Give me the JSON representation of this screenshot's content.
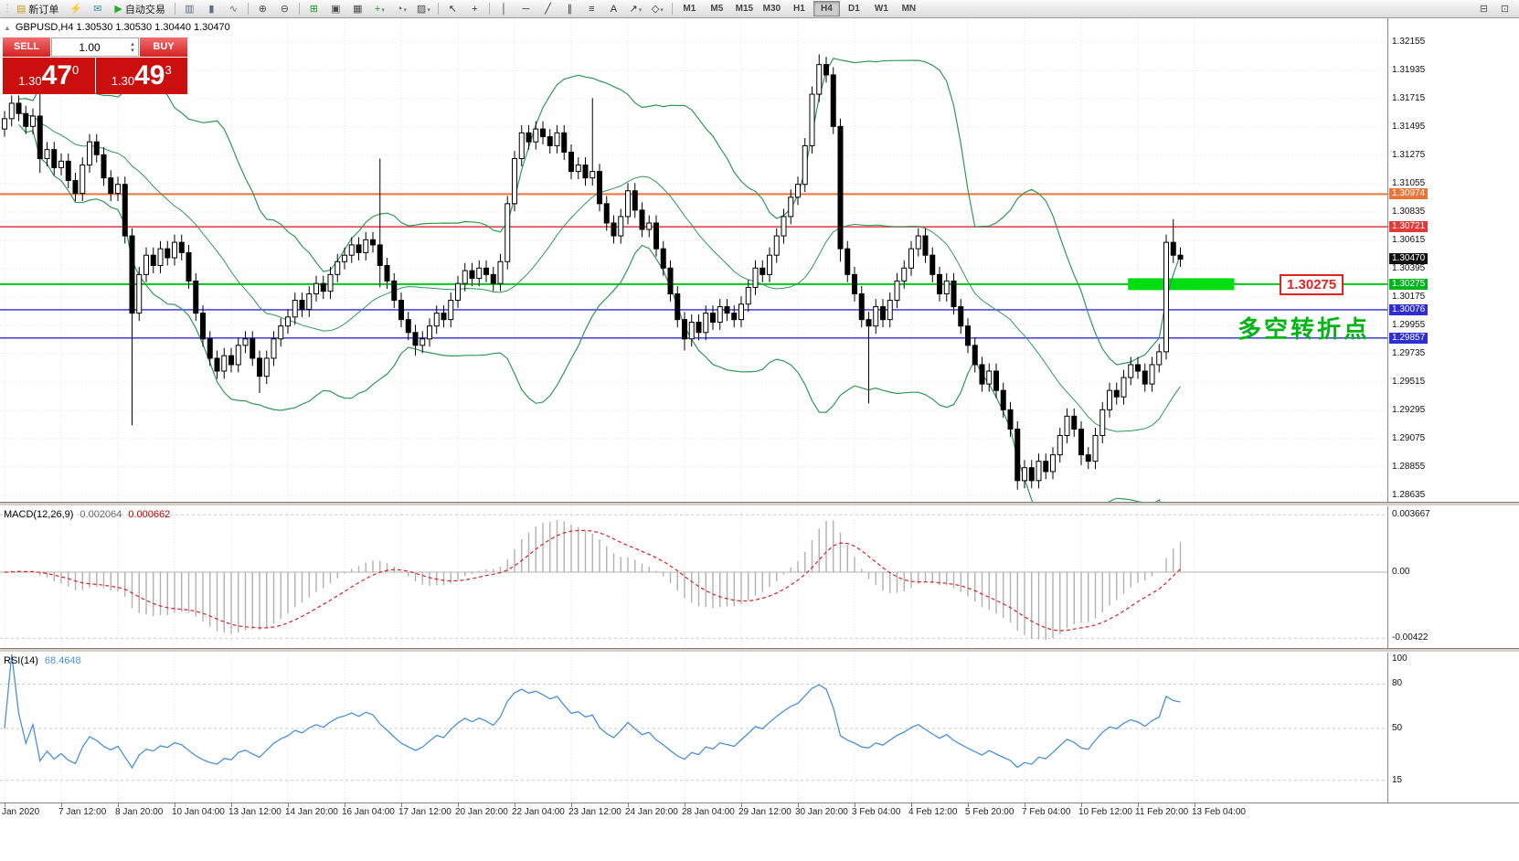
{
  "toolbar": {
    "items": [
      {
        "t": "grip",
        "name": "toolbar-grip"
      },
      {
        "t": "button",
        "name": "new-order-button",
        "glyph": "▤",
        "gc": "#caa21a",
        "label": "新订单"
      },
      {
        "t": "icon",
        "name": "alerts-icon-button",
        "glyph": "⚡",
        "gc": "#d39b18"
      },
      {
        "t": "icon",
        "name": "mailbox-icon-button",
        "glyph": "✉",
        "gc": "#2f94ae"
      },
      {
        "t": "button",
        "name": "auto-trading-button",
        "glyph": "▶",
        "gc": "#1db11d",
        "label": "自动交易"
      },
      {
        "t": "sep"
      },
      {
        "t": "icon",
        "name": "bar-chart-icon-button",
        "glyph": "▥",
        "gc": "#5a6f85"
      },
      {
        "t": "icon",
        "name": "candlestick-chart-icon-button",
        "glyph": "▮",
        "gc": "#5a6f85"
      },
      {
        "t": "icon",
        "name": "line-chart-icon-button",
        "glyph": "∿",
        "gc": "#5a6f85"
      },
      {
        "t": "sep"
      },
      {
        "t": "icon",
        "name": "zoom-in-icon-button",
        "glyph": "⊕",
        "gc": "#4a4a4a"
      },
      {
        "t": "icon",
        "name": "zoom-out-icon-button",
        "glyph": "⊖",
        "gc": "#4a4a4a"
      },
      {
        "t": "sep"
      },
      {
        "t": "icon",
        "name": "tile-windows-icon-button",
        "glyph": "⊞",
        "gc": "#1a9c1a"
      },
      {
        "t": "icon",
        "name": "cascade-windows-icon-button",
        "glyph": "▣",
        "gc": "#4a4a4a"
      },
      {
        "t": "icon",
        "name": "arrange-windows-icon-button",
        "glyph": "▦",
        "gc": "#4a4a4a"
      },
      {
        "t": "icon",
        "name": "indicators-icon-button",
        "glyph": "+",
        "gc": "#1a9c1a",
        "caret": true
      },
      {
        "t": "icon",
        "name": "periods-icon-button",
        "glyph": "◔",
        "gc": "#4a4a4a",
        "caret": true
      },
      {
        "t": "icon",
        "name": "templates-icon-button",
        "glyph": "▨",
        "gc": "#4a4a4a",
        "caret": true
      },
      {
        "t": "sep"
      },
      {
        "t": "icon",
        "name": "cursor-icon-button",
        "glyph": "↖",
        "gc": "#333333"
      },
      {
        "t": "icon",
        "name": "crosshair-icon-button",
        "glyph": "+",
        "gc": "#333333"
      },
      {
        "t": "sep"
      },
      {
        "t": "icon",
        "name": "vertical-line-icon-button",
        "glyph": "│",
        "gc": "#333333"
      },
      {
        "t": "icon",
        "name": "horizontal-line-icon-button",
        "glyph": "─",
        "gc": "#333333"
      },
      {
        "t": "icon",
        "name": "trendline-icon-button",
        "glyph": "╱",
        "gc": "#333333"
      },
      {
        "t": "icon",
        "name": "channel-icon-button",
        "glyph": "∥",
        "gc": "#333333"
      },
      {
        "t": "icon",
        "name": "fibonacci-icon-button",
        "glyph": "≡",
        "gc": "#333333"
      },
      {
        "t": "icon",
        "name": "text-icon-button",
        "glyph": "A",
        "gc": "#333333"
      },
      {
        "t": "icon",
        "name": "arrows-icon-button",
        "glyph": "↗",
        "gc": "#333333",
        "caret": true
      },
      {
        "t": "icon",
        "name": "shapes-icon-button",
        "glyph": "◇",
        "gc": "#333333",
        "caret": true
      },
      {
        "t": "sep"
      }
    ],
    "timeframes": [
      "M1",
      "M5",
      "M15",
      "M30",
      "H1",
      "H4",
      "D1",
      "W1",
      "MN"
    ],
    "active_timeframe": "H4",
    "right_icons": [
      {
        "name": "data-window-icon-button",
        "glyph": "⊟"
      },
      {
        "name": "full-screen-icon-button",
        "glyph": "⊡"
      }
    ]
  },
  "chart": {
    "symbol_header": {
      "collapse_icon": "▲",
      "text": "GBPUSD,H4 1.30530 1.30530 1.30440 1.30470"
    },
    "trade_panel": {
      "sell_label": "SELL",
      "buy_label": "BUY",
      "volume": "1.00",
      "spin_up": "▴",
      "spin_down": "▾",
      "sell_price": {
        "prefix": "1.30",
        "big": "47",
        "sup": "0"
      },
      "buy_price": {
        "prefix": "1.30",
        "big": "49",
        "sup": "3"
      }
    },
    "price_axis_ticks": [
      "1.32155",
      "1.31935",
      "1.31715",
      "1.31495",
      "1.31275",
      "1.31055",
      "1.30835",
      "1.30615",
      "1.30395",
      "1.30175",
      "1.29955",
      "1.29735",
      "1.29515",
      "1.29295",
      "1.29075",
      "1.28855",
      "1.28635"
    ],
    "axis_badges": [
      {
        "text": "1.30974",
        "bg": "#e8763a"
      },
      {
        "text": "1.30721",
        "bg": "#e03a3a"
      },
      {
        "text": "1.30470",
        "bg": "#111111"
      },
      {
        "text": "1.30275",
        "bg": "#00b41e"
      },
      {
        "text": "1.30076",
        "bg": "#2d2dd0"
      },
      {
        "text": "1.29857",
        "bg": "#2d2dd0"
      }
    ],
    "hlines": [
      {
        "price": 1.30974,
        "color": "#e8763a",
        "w": 2
      },
      {
        "price": 1.30721,
        "color": "#e03a3a",
        "w": 1.5
      },
      {
        "price": 1.30275,
        "color": "#00c816",
        "w": 2
      },
      {
        "price": 1.30076,
        "color": "#2d2dd0",
        "w": 1.3
      },
      {
        "price": 1.29857,
        "color": "#2d2dd0",
        "w": 1.3
      }
    ],
    "highlight_bar": {
      "price": 1.30275,
      "start_index": 159,
      "end_index": 174,
      "color": "#00dd11",
      "thickness": 13
    },
    "price_label_box": "1.30275",
    "annotation": {
      "text": "多空转折点",
      "color": "#00b414"
    },
    "colors": {
      "bollinger": "#2e9953",
      "candle_up": "#ffffff",
      "candle_down": "#000000",
      "candle_border": "#000000",
      "grid": "#e6e6e6",
      "macd_hist": "#b0b0b0",
      "macd_signal": "#dd2020",
      "rsi_line": "#4a90d9",
      "level_dash": "#c8c8c8"
    }
  },
  "chart_data": {
    "type": "candlestick",
    "symbol": "GBPUSD",
    "timeframe": "H4",
    "first_open": 1.3148,
    "wick": 0.0006,
    "closes": [
      1.3156,
      1.3168,
      1.316,
      1.315,
      1.3158,
      1.3125,
      1.3132,
      1.3118,
      1.3123,
      1.3108,
      1.3098,
      1.312,
      1.3138,
      1.3128,
      1.311,
      1.3098,
      1.3105,
      1.3065,
      1.3005,
      1.3035,
      1.305,
      1.3042,
      1.3055,
      1.3048,
      1.306,
      1.3052,
      1.303,
      1.3005,
      1.2985,
      1.297,
      1.296,
      1.2972,
      1.2965,
      1.298,
      1.2985,
      1.297,
      1.2956,
      1.297,
      1.2985,
      1.2995,
      1.3002,
      1.3015,
      1.3008,
      1.302,
      1.3028,
      1.3022,
      1.3035,
      1.3045,
      1.305,
      1.3058,
      1.3052,
      1.3062,
      1.3058,
      1.3042,
      1.303,
      1.3015,
      1.3,
      1.299,
      1.298,
      1.2985,
      1.2995,
      1.3005,
      1.3,
      1.3015,
      1.3028,
      1.3038,
      1.3032,
      1.304,
      1.3035,
      1.3028,
      1.3045,
      1.309,
      1.3125,
      1.3145,
      1.3138,
      1.3148,
      1.3142,
      1.3135,
      1.3145,
      1.313,
      1.3115,
      1.312,
      1.311,
      1.3115,
      1.309,
      1.3075,
      1.3065,
      1.308,
      1.31,
      1.3085,
      1.307,
      1.3075,
      1.3055,
      1.304,
      1.302,
      1.3,
      1.2985,
      1.2998,
      1.299,
      1.3005,
      1.2998,
      1.301,
      1.3005,
      1.3,
      1.3012,
      1.3025,
      1.304,
      1.3035,
      1.305,
      1.3065,
      1.308,
      1.3095,
      1.3105,
      1.3135,
      1.3175,
      1.3198,
      1.319,
      1.315,
      1.3055,
      1.3035,
      1.302,
      1.3,
      1.2995,
      1.301,
      1.3,
      1.3015,
      1.303,
      1.304,
      1.3055,
      1.3065,
      1.305,
      1.3035,
      1.302,
      1.303,
      1.301,
      1.2995,
      1.298,
      1.2965,
      1.295,
      1.296,
      1.2945,
      1.293,
      1.2915,
      1.2875,
      1.2885,
      1.2875,
      1.289,
      1.2882,
      1.2895,
      1.291,
      1.2925,
      1.2915,
      1.2895,
      1.289,
      1.291,
      1.293,
      1.2945,
      1.294,
      1.2955,
      1.2965,
      1.296,
      1.295,
      1.2965,
      1.2975,
      1.306,
      1.305,
      1.3047
    ],
    "overrides": {
      "5": {
        "h": 1.3176,
        "l": 1.3114
      },
      "18": {
        "l": 1.2918
      },
      "36": {
        "l": 1.2943
      },
      "53": {
        "h": 1.3125,
        "l": 1.3025
      },
      "58": {
        "l": 1.2972
      },
      "83": {
        "h": 1.3172
      },
      "96": {
        "l": 1.2976
      },
      "115": {
        "h": 1.3206
      },
      "118": {
        "l": 1.3045
      },
      "122": {
        "l": 1.2935
      },
      "143": {
        "l": 1.2868
      },
      "152": {
        "l": 1.2887
      },
      "164": {
        "h": 1.3066
      },
      "165": {
        "h": 1.3078
      }
    },
    "bollinger": {
      "period": 20,
      "deviation": 2
    },
    "macd": {
      "fast": 12,
      "slow": 26,
      "signal": 9
    },
    "rsi": {
      "period": 14
    }
  },
  "macd_panel": {
    "label": "MACD(12,26,9)",
    "main_value": "0.002064",
    "signal_value": "0.000662",
    "axis": [
      "0.003667",
      "0.00",
      "-0.00422"
    ]
  },
  "rsi_panel": {
    "label": "RSI(14)",
    "value": "68.4648",
    "axis": [
      "100",
      "80",
      "50",
      "15"
    ]
  },
  "time_axis": {
    "labels": [
      "Jan 2020",
      "7 Jan 12:00",
      "8 Jan 20:00",
      "10 Jan 04:00",
      "13 Jan 12:00",
      "14 Jan 20:00",
      "16 Jan 04:00",
      "17 Jan 12:00",
      "20 Jan 20:00",
      "22 Jan 04:00",
      "23 Jan 12:00",
      "24 Jan 20:00",
      "28 Jan 04:00",
      "29 Jan 12:00",
      "30 Jan 20:00",
      "3 Feb 04:00",
      "4 Feb 12:00",
      "5 Feb 20:00",
      "7 Feb 04:00",
      "10 Feb 12:00",
      "11 Feb 20:00",
      "13 Feb 04:00"
    ]
  }
}
